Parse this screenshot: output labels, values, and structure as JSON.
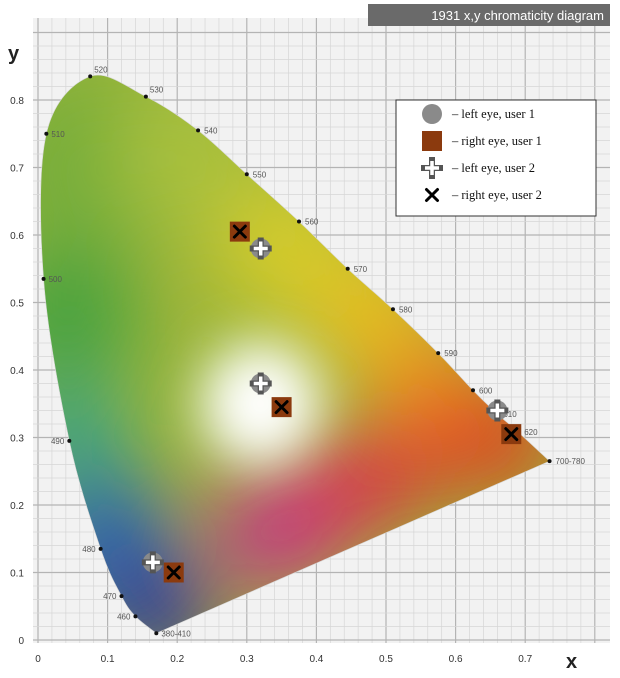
{
  "chart_data": {
    "type": "scatter",
    "title": "1931 x,y chromaticity diagram",
    "xlabel": "x",
    "ylabel": "y",
    "xlim": [
      0,
      0.8
    ],
    "ylim": [
      0,
      0.9
    ],
    "grid": true,
    "x_ticks": [
      "0",
      "0.1",
      "0.2",
      "0.3",
      "0.4",
      "0.5",
      "0.6",
      "0.7"
    ],
    "y_ticks": [
      "0",
      "0.1",
      "0.2",
      "0.3",
      "0.4",
      "0.5",
      "0.6",
      "0.7",
      "0.8"
    ],
    "spectral_locus": [
      {
        "label": "380-410",
        "x": 0.17,
        "y": 0.01
      },
      {
        "label": "460",
        "x": 0.14,
        "y": 0.035
      },
      {
        "label": "470",
        "x": 0.12,
        "y": 0.065
      },
      {
        "label": "480",
        "x": 0.09,
        "y": 0.135
      },
      {
        "label": "490",
        "x": 0.045,
        "y": 0.295
      },
      {
        "label": "500",
        "x": 0.008,
        "y": 0.535
      },
      {
        "label": "510",
        "x": 0.012,
        "y": 0.75
      },
      {
        "label": "520",
        "x": 0.075,
        "y": 0.835
      },
      {
        "label": "530",
        "x": 0.155,
        "y": 0.805
      },
      {
        "label": "540",
        "x": 0.23,
        "y": 0.755
      },
      {
        "label": "550",
        "x": 0.3,
        "y": 0.69
      },
      {
        "label": "560",
        "x": 0.375,
        "y": 0.62
      },
      {
        "label": "570",
        "x": 0.445,
        "y": 0.55
      },
      {
        "label": "580",
        "x": 0.51,
        "y": 0.49
      },
      {
        "label": "590",
        "x": 0.575,
        "y": 0.425
      },
      {
        "label": "600",
        "x": 0.625,
        "y": 0.37
      },
      {
        "label": "610",
        "x": 0.66,
        "y": 0.335
      },
      {
        "label": "620",
        "x": 0.69,
        "y": 0.308
      },
      {
        "label": "700-780",
        "x": 0.735,
        "y": 0.265
      }
    ],
    "series": [
      {
        "name": "– left eye, user 1",
        "marker": "circle",
        "color": "#8a8a8a",
        "points": [
          {
            "x": 0.32,
            "y": 0.58
          },
          {
            "x": 0.32,
            "y": 0.38
          },
          {
            "x": 0.165,
            "y": 0.115
          },
          {
            "x": 0.66,
            "y": 0.34
          }
        ]
      },
      {
        "name": "– right eye, user 1",
        "marker": "square",
        "color": "#8b3a0e",
        "points": [
          {
            "x": 0.29,
            "y": 0.605
          },
          {
            "x": 0.35,
            "y": 0.345
          },
          {
            "x": 0.195,
            "y": 0.1
          },
          {
            "x": 0.68,
            "y": 0.305
          }
        ]
      },
      {
        "name": "– left eye, user 2",
        "marker": "plus",
        "color": "#ffffff",
        "points": [
          {
            "x": 0.32,
            "y": 0.58
          },
          {
            "x": 0.32,
            "y": 0.38
          },
          {
            "x": 0.165,
            "y": 0.115
          },
          {
            "x": 0.66,
            "y": 0.34
          }
        ]
      },
      {
        "name": "– right eye, user 2",
        "marker": "x",
        "color": "#000000",
        "points": [
          {
            "x": 0.29,
            "y": 0.605
          },
          {
            "x": 0.35,
            "y": 0.345
          },
          {
            "x": 0.195,
            "y": 0.1
          },
          {
            "x": 0.68,
            "y": 0.305
          }
        ]
      }
    ],
    "legend": "top-right"
  }
}
